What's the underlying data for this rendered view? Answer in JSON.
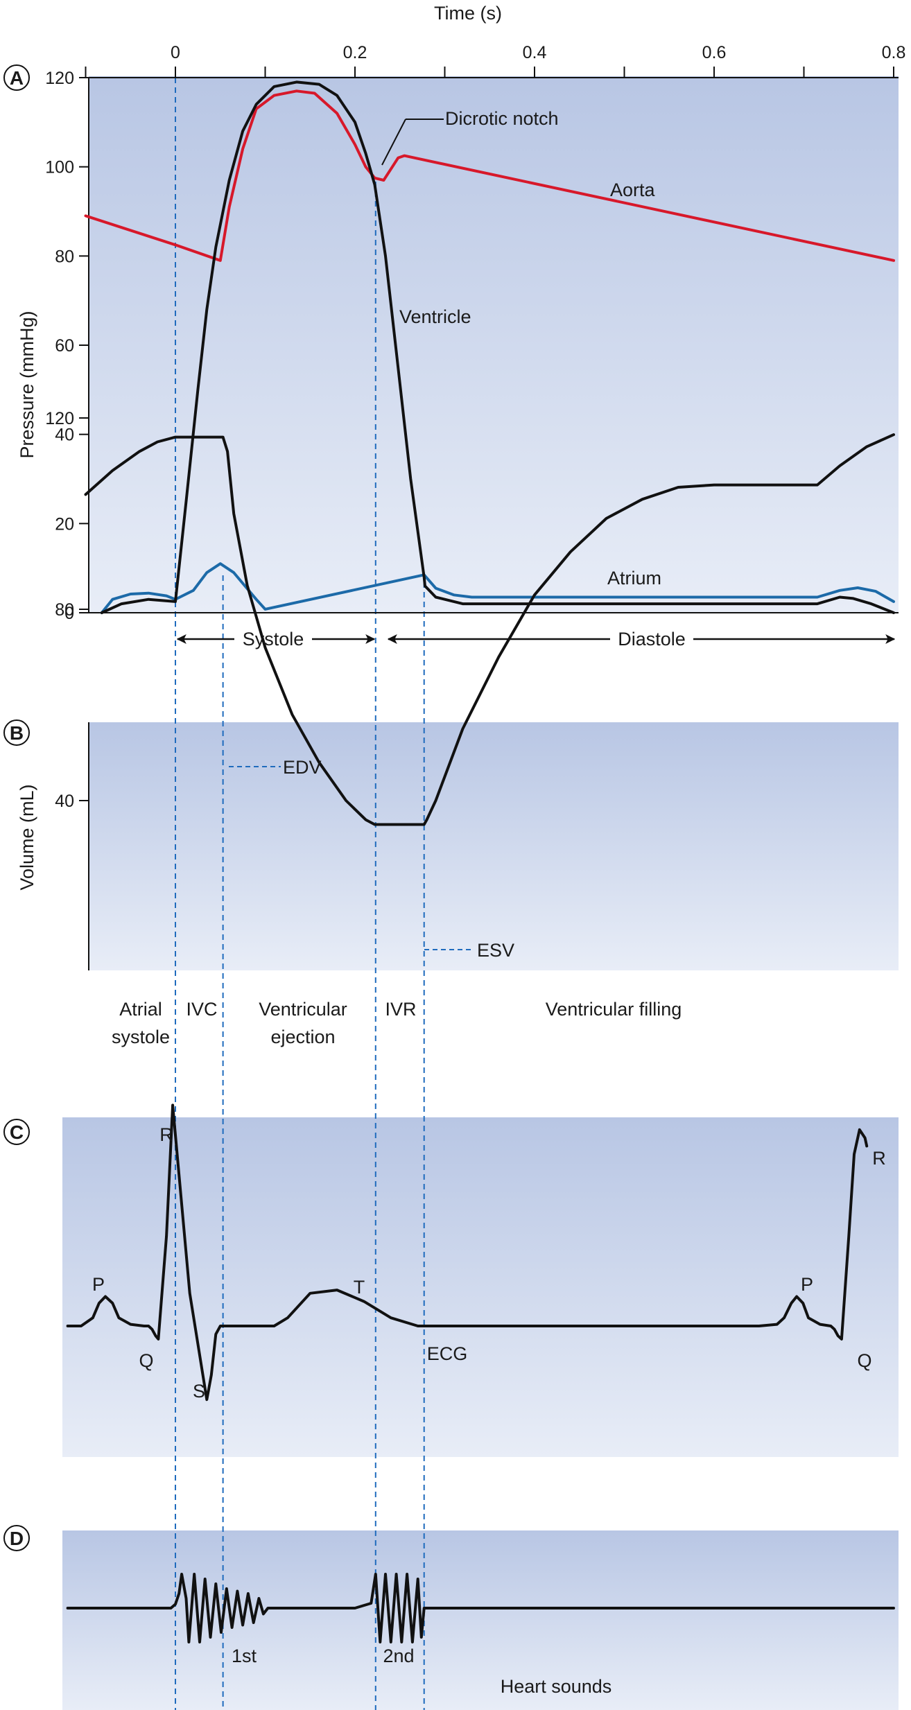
{
  "colors": {
    "panel_top": "#b8c6e4",
    "panel_bottom": "#e8edf7",
    "ventricle": "#111111",
    "aorta": "#d7182a",
    "atrium": "#1c6aa8",
    "guide": "#1f6bbd"
  },
  "panel_letters": [
    "A",
    "B",
    "C",
    "D"
  ],
  "time_axis": {
    "title": "Time (s)",
    "ticks": [
      "0",
      "0.2",
      "0.4",
      "0.6",
      "0.8"
    ],
    "range": [
      -0.1,
      0.8
    ]
  },
  "event_times": [
    0.0,
    0.053,
    0.223,
    0.277
  ],
  "phase_arrows": {
    "systole": "Systole",
    "diastole": "Diastole"
  },
  "phase_labels": {
    "atrial_systole_1": "Atrial",
    "atrial_systole_2": "systole",
    "ivc": "IVC",
    "ejection_1": "Ventricular",
    "ejection_2": "ejection",
    "ivr": "IVR",
    "filling": "Ventricular filling"
  },
  "chart_data": [
    {
      "panel": "A",
      "type": "line",
      "ylabel": "Pressure (mmHg)",
      "ylim": [
        0,
        120
      ],
      "yticks": [
        "0",
        "20",
        "40",
        "60",
        "80",
        "100",
        "120"
      ],
      "annotations": {
        "dicrotic_notch": "Dicrotic notch"
      },
      "series": [
        {
          "name": "Ventricle",
          "color_key": "ventricle",
          "points": [
            [
              -0.082,
              0
            ],
            [
              -0.06,
              2
            ],
            [
              -0.03,
              3
            ],
            [
              0.0,
              2.5
            ],
            [
              0.012,
              25
            ],
            [
              0.025,
              50
            ],
            [
              0.035,
              68
            ],
            [
              0.045,
              82
            ],
            [
              0.06,
              97
            ],
            [
              0.075,
              108
            ],
            [
              0.09,
              114
            ],
            [
              0.11,
              118
            ],
            [
              0.135,
              119
            ],
            [
              0.16,
              118.5
            ],
            [
              0.18,
              116
            ],
            [
              0.2,
              110
            ],
            [
              0.212,
              103
            ],
            [
              0.222,
              96
            ],
            [
              0.234,
              80
            ],
            [
              0.248,
              55
            ],
            [
              0.262,
              30
            ],
            [
              0.277,
              8
            ],
            [
              0.278,
              6
            ],
            [
              0.29,
              3.5
            ],
            [
              0.32,
              2
            ],
            [
              0.4,
              2
            ],
            [
              0.5,
              2
            ],
            [
              0.6,
              2
            ],
            [
              0.7,
              2
            ],
            [
              0.715,
              2
            ],
            [
              0.74,
              3.5
            ],
            [
              0.755,
              3.2
            ],
            [
              0.775,
              2
            ],
            [
              0.8,
              0
            ]
          ]
        },
        {
          "name": "Aorta",
          "color_key": "aorta",
          "points": [
            [
              -0.1,
              89
            ],
            [
              0.0,
              82.5
            ],
            [
              0.05,
              79
            ],
            [
              0.06,
              91
            ],
            [
              0.075,
              104
            ],
            [
              0.09,
              113
            ],
            [
              0.11,
              116
            ],
            [
              0.135,
              117
            ],
            [
              0.155,
              116.5
            ],
            [
              0.18,
              112
            ],
            [
              0.2,
              105
            ],
            [
              0.212,
              100
            ],
            [
              0.222,
              97.5
            ],
            [
              0.232,
              97
            ],
            [
              0.24,
              99.5
            ],
            [
              0.248,
              102
            ],
            [
              0.255,
              102.5
            ],
            [
              0.8,
              79
            ]
          ]
        },
        {
          "name": "Atrium",
          "color_key": "atrium",
          "points": [
            [
              -0.082,
              0
            ],
            [
              -0.07,
              3
            ],
            [
              -0.05,
              4.2
            ],
            [
              -0.03,
              4.4
            ],
            [
              -0.01,
              3.8
            ],
            [
              0.0,
              3
            ],
            [
              0.02,
              5
            ],
            [
              0.035,
              9
            ],
            [
              0.05,
              11
            ],
            [
              0.065,
              9
            ],
            [
              0.09,
              3
            ],
            [
              0.1,
              0.8
            ],
            [
              0.277,
              8.5
            ],
            [
              0.29,
              5.5
            ],
            [
              0.31,
              4
            ],
            [
              0.33,
              3.5
            ],
            [
              0.4,
              3.5
            ],
            [
              0.5,
              3.5
            ],
            [
              0.6,
              3.5
            ],
            [
              0.7,
              3.5
            ],
            [
              0.715,
              3.5
            ],
            [
              0.74,
              5
            ],
            [
              0.76,
              5.6
            ],
            [
              0.78,
              4.8
            ],
            [
              0.8,
              2.5
            ]
          ]
        }
      ]
    },
    {
      "panel": "B",
      "type": "line",
      "ylabel": "Volume (mL)",
      "ylim": [
        33,
        135
      ],
      "yticks": [
        "40",
        "80",
        "120"
      ],
      "annotations": {
        "edv": "EDV",
        "esv": "ESV"
      },
      "series": [
        {
          "name": "",
          "color_key": "ventricle",
          "points": [
            [
              -0.1,
              104
            ],
            [
              -0.07,
              109
            ],
            [
              -0.04,
              113
            ],
            [
              -0.02,
              115
            ],
            [
              0.0,
              116
            ],
            [
              0.053,
              116
            ],
            [
              0.058,
              113
            ],
            [
              0.065,
              100
            ],
            [
              0.08,
              85
            ],
            [
              0.1,
              72
            ],
            [
              0.13,
              58
            ],
            [
              0.16,
              48
            ],
            [
              0.19,
              40
            ],
            [
              0.212,
              36
            ],
            [
              0.222,
              35
            ],
            [
              0.277,
              35
            ],
            [
              0.28,
              36
            ],
            [
              0.29,
              40
            ],
            [
              0.32,
              55
            ],
            [
              0.36,
              70
            ],
            [
              0.4,
              83
            ],
            [
              0.44,
              92
            ],
            [
              0.48,
              99
            ],
            [
              0.52,
              103
            ],
            [
              0.56,
              105.5
            ],
            [
              0.6,
              106
            ],
            [
              0.7,
              106
            ],
            [
              0.715,
              106
            ],
            [
              0.74,
              110
            ],
            [
              0.77,
              114
            ],
            [
              0.8,
              116.5
            ]
          ]
        }
      ]
    },
    {
      "panel": "C",
      "type": "line",
      "ylim": [
        -1.5,
        1.5
      ],
      "labels": {
        "p": "P",
        "q": "Q",
        "r": "R",
        "s": "S",
        "t": "T",
        "ecg": "ECG"
      },
      "series": [
        {
          "name": "",
          "color_key": "ventricle",
          "points": [
            [
              -0.12,
              0
            ],
            [
              -0.105,
              0
            ],
            [
              -0.092,
              0.05
            ],
            [
              -0.085,
              0.14
            ],
            [
              -0.078,
              0.18
            ],
            [
              -0.07,
              0.14
            ],
            [
              -0.063,
              0.05
            ],
            [
              -0.05,
              0.01
            ],
            [
              -0.035,
              0
            ],
            [
              -0.03,
              0
            ],
            [
              -0.026,
              -0.02
            ],
            [
              -0.022,
              -0.06
            ],
            [
              -0.019,
              -0.08
            ],
            [
              -0.01,
              0.55
            ],
            [
              -0.003,
              1.35
            ],
            [
              0.016,
              0.2
            ],
            [
              0.035,
              -0.45
            ],
            [
              0.04,
              -0.3
            ],
            [
              0.045,
              -0.05
            ],
            [
              0.05,
              0
            ],
            [
              0.06,
              0
            ],
            [
              0.08,
              0
            ],
            [
              0.1,
              0
            ],
            [
              0.11,
              0
            ],
            [
              0.125,
              0.05
            ],
            [
              0.15,
              0.2
            ],
            [
              0.18,
              0.22
            ],
            [
              0.21,
              0.15
            ],
            [
              0.24,
              0.05
            ],
            [
              0.27,
              0
            ],
            [
              0.3,
              0
            ],
            [
              0.4,
              0
            ],
            [
              0.5,
              0
            ],
            [
              0.6,
              0
            ],
            [
              0.65,
              0
            ],
            [
              0.67,
              0.01
            ],
            [
              0.678,
              0.05
            ],
            [
              0.686,
              0.14
            ],
            [
              0.692,
              0.18
            ],
            [
              0.699,
              0.14
            ],
            [
              0.705,
              0.05
            ],
            [
              0.718,
              0.01
            ],
            [
              0.73,
              0
            ],
            [
              0.734,
              -0.02
            ],
            [
              0.738,
              -0.06
            ],
            [
              0.742,
              -0.08
            ],
            [
              0.75,
              0.55
            ],
            [
              0.756,
              1.05
            ],
            [
              0.762,
              1.2
            ],
            [
              0.768,
              1.15
            ],
            [
              0.77,
              1.1
            ]
          ]
        }
      ]
    },
    {
      "panel": "D",
      "type": "line",
      "ylim": [
        -1.2,
        1.2
      ],
      "labels": {
        "first": "1st",
        "second": "2nd",
        "title": "Heart sounds"
      },
      "series": [
        {
          "name": "",
          "color_key": "ventricle",
          "points": [
            [
              -0.12,
              0
            ],
            [
              -0.005,
              0
            ],
            [
              0.0,
              0.08
            ],
            [
              0.004,
              0.3
            ],
            [
              0.007,
              0.7
            ],
            [
              0.012,
              0.2
            ],
            [
              0.015,
              -0.7
            ],
            [
              0.021,
              0.7
            ],
            [
              0.027,
              -0.7
            ],
            [
              0.033,
              0.6
            ],
            [
              0.039,
              -0.6
            ],
            [
              0.045,
              0.5
            ],
            [
              0.051,
              -0.5
            ],
            [
              0.057,
              0.4
            ],
            [
              0.063,
              -0.4
            ],
            [
              0.069,
              0.35
            ],
            [
              0.075,
              -0.35
            ],
            [
              0.081,
              0.3
            ],
            [
              0.087,
              -0.3
            ],
            [
              0.093,
              0.2
            ],
            [
              0.098,
              -0.12
            ],
            [
              0.103,
              0
            ],
            [
              0.2,
              0
            ],
            [
              0.218,
              0.1
            ],
            [
              0.223,
              0.7
            ],
            [
              0.228,
              -0.7
            ],
            [
              0.234,
              0.7
            ],
            [
              0.24,
              -0.7
            ],
            [
              0.246,
              0.7
            ],
            [
              0.252,
              -0.7
            ],
            [
              0.258,
              0.7
            ],
            [
              0.264,
              -0.7
            ],
            [
              0.27,
              0.6
            ],
            [
              0.274,
              -0.6
            ],
            [
              0.277,
              0
            ],
            [
              0.3,
              0
            ],
            [
              0.8,
              0
            ]
          ]
        }
      ]
    }
  ]
}
